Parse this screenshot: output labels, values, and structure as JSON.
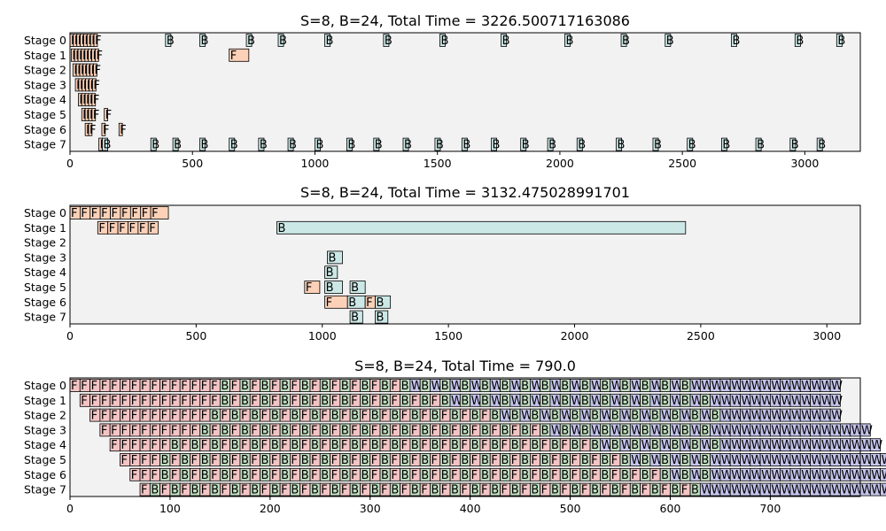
{
  "chart_data": [
    {
      "type": "gantt",
      "title": "S=8, B=24, Total Time = 3226.500717163086",
      "stages": [
        "Stage 0",
        "Stage 1",
        "Stage 2",
        "Stage 3",
        "Stage 4",
        "Stage 5",
        "Stage 6",
        "Stage 7"
      ],
      "xlim": [
        0,
        3226.5
      ],
      "xticks": [
        0,
        500,
        1000,
        1500,
        2000,
        2500,
        3000
      ],
      "xtick_labels": [
        "0",
        "500",
        "1000",
        "1500",
        "2000",
        "2500",
        "3000"
      ],
      "colors": {
        "F": "#fcd1b8",
        "B": "#cce8e6",
        "W": "#cce8e6",
        "bg": "#f2f2f2"
      },
      "ops": [
        {
          "stage": 0,
          "kind": "F",
          "start": 0,
          "dur": 14
        },
        {
          "stage": 0,
          "kind": "F",
          "start": 14,
          "dur": 14
        },
        {
          "stage": 0,
          "kind": "F",
          "start": 28,
          "dur": 14
        },
        {
          "stage": 0,
          "kind": "F",
          "start": 42,
          "dur": 14
        },
        {
          "stage": 0,
          "kind": "F",
          "start": 56,
          "dur": 14
        },
        {
          "stage": 0,
          "kind": "F",
          "start": 70,
          "dur": 14
        },
        {
          "stage": 0,
          "kind": "F",
          "start": 84,
          "dur": 14
        },
        {
          "stage": 0,
          "kind": "F",
          "start": 98,
          "dur": 14
        },
        {
          "stage": 1,
          "kind": "F",
          "start": 5,
          "dur": 14
        },
        {
          "stage": 1,
          "kind": "F",
          "start": 19,
          "dur": 14
        },
        {
          "stage": 1,
          "kind": "F",
          "start": 33,
          "dur": 14
        },
        {
          "stage": 1,
          "kind": "F",
          "start": 47,
          "dur": 14
        },
        {
          "stage": 1,
          "kind": "F",
          "start": 61,
          "dur": 14
        },
        {
          "stage": 1,
          "kind": "F",
          "start": 75,
          "dur": 14
        },
        {
          "stage": 1,
          "kind": "F",
          "start": 89,
          "dur": 14
        },
        {
          "stage": 1,
          "kind": "F",
          "start": 103,
          "dur": 14
        },
        {
          "stage": 2,
          "kind": "F",
          "start": 12,
          "dur": 14
        },
        {
          "stage": 2,
          "kind": "F",
          "start": 26,
          "dur": 14
        },
        {
          "stage": 2,
          "kind": "F",
          "start": 40,
          "dur": 14
        },
        {
          "stage": 2,
          "kind": "F",
          "start": 54,
          "dur": 14
        },
        {
          "stage": 2,
          "kind": "F",
          "start": 68,
          "dur": 14
        },
        {
          "stage": 2,
          "kind": "F",
          "start": 82,
          "dur": 14
        },
        {
          "stage": 2,
          "kind": "F",
          "start": 96,
          "dur": 14
        },
        {
          "stage": 3,
          "kind": "F",
          "start": 22,
          "dur": 14
        },
        {
          "stage": 3,
          "kind": "F",
          "start": 36,
          "dur": 14
        },
        {
          "stage": 3,
          "kind": "F",
          "start": 50,
          "dur": 14
        },
        {
          "stage": 3,
          "kind": "F",
          "start": 64,
          "dur": 14
        },
        {
          "stage": 3,
          "kind": "F",
          "start": 78,
          "dur": 14
        },
        {
          "stage": 3,
          "kind": "F",
          "start": 92,
          "dur": 14
        },
        {
          "stage": 4,
          "kind": "F",
          "start": 34,
          "dur": 14
        },
        {
          "stage": 4,
          "kind": "F",
          "start": 48,
          "dur": 14
        },
        {
          "stage": 4,
          "kind": "F",
          "start": 62,
          "dur": 14
        },
        {
          "stage": 4,
          "kind": "F",
          "start": 76,
          "dur": 14
        },
        {
          "stage": 4,
          "kind": "F",
          "start": 90,
          "dur": 14
        },
        {
          "stage": 5,
          "kind": "F",
          "start": 48,
          "dur": 14
        },
        {
          "stage": 5,
          "kind": "F",
          "start": 62,
          "dur": 14
        },
        {
          "stage": 5,
          "kind": "F",
          "start": 76,
          "dur": 14
        },
        {
          "stage": 5,
          "kind": "F",
          "start": 90,
          "dur": 14
        },
        {
          "stage": 5,
          "kind": "F",
          "start": 140,
          "dur": 14
        },
        {
          "stage": 6,
          "kind": "F",
          "start": 62,
          "dur": 14
        },
        {
          "stage": 6,
          "kind": "F",
          "start": 76,
          "dur": 14
        },
        {
          "stage": 6,
          "kind": "F",
          "start": 130,
          "dur": 14
        },
        {
          "stage": 6,
          "kind": "F",
          "start": 200,
          "dur": 14
        },
        {
          "stage": 7,
          "kind": "F",
          "start": 118,
          "dur": 14
        },
        {
          "stage": 7,
          "kind": "B",
          "start": 132,
          "dur": 22
        },
        {
          "stage": 7,
          "kind": "B",
          "start": 330,
          "dur": 22
        },
        {
          "stage": 7,
          "kind": "B",
          "start": 420,
          "dur": 22
        },
        {
          "stage": 7,
          "kind": "B",
          "start": 530,
          "dur": 22
        },
        {
          "stage": 7,
          "kind": "B",
          "start": 650,
          "dur": 22
        },
        {
          "stage": 7,
          "kind": "B",
          "start": 770,
          "dur": 22
        },
        {
          "stage": 7,
          "kind": "B",
          "start": 890,
          "dur": 22
        },
        {
          "stage": 7,
          "kind": "B",
          "start": 1000,
          "dur": 22
        },
        {
          "stage": 7,
          "kind": "B",
          "start": 1130,
          "dur": 22
        },
        {
          "stage": 7,
          "kind": "B",
          "start": 1240,
          "dur": 22
        },
        {
          "stage": 7,
          "kind": "B",
          "start": 1360,
          "dur": 22
        },
        {
          "stage": 7,
          "kind": "B",
          "start": 1490,
          "dur": 22
        },
        {
          "stage": 7,
          "kind": "B",
          "start": 1600,
          "dur": 22
        },
        {
          "stage": 7,
          "kind": "B",
          "start": 1720,
          "dur": 22
        },
        {
          "stage": 7,
          "kind": "B",
          "start": 1840,
          "dur": 22
        },
        {
          "stage": 7,
          "kind": "B",
          "start": 1950,
          "dur": 22
        },
        {
          "stage": 7,
          "kind": "B",
          "start": 2070,
          "dur": 22
        },
        {
          "stage": 7,
          "kind": "B",
          "start": 2230,
          "dur": 22
        },
        {
          "stage": 7,
          "kind": "B",
          "start": 2380,
          "dur": 22
        },
        {
          "stage": 7,
          "kind": "B",
          "start": 2520,
          "dur": 22
        },
        {
          "stage": 7,
          "kind": "B",
          "start": 2660,
          "dur": 22
        },
        {
          "stage": 7,
          "kind": "B",
          "start": 2800,
          "dur": 22
        },
        {
          "stage": 7,
          "kind": "B",
          "start": 2940,
          "dur": 22
        },
        {
          "stage": 7,
          "kind": "B",
          "start": 3050,
          "dur": 22
        },
        {
          "stage": 0,
          "kind": "B",
          "start": 390,
          "dur": 22
        },
        {
          "stage": 0,
          "kind": "B",
          "start": 530,
          "dur": 22
        },
        {
          "stage": 0,
          "kind": "B",
          "start": 720,
          "dur": 22
        },
        {
          "stage": 0,
          "kind": "B",
          "start": 850,
          "dur": 22
        },
        {
          "stage": 0,
          "kind": "B",
          "start": 1040,
          "dur": 22
        },
        {
          "stage": 0,
          "kind": "B",
          "start": 1280,
          "dur": 22
        },
        {
          "stage": 0,
          "kind": "B",
          "start": 1510,
          "dur": 22
        },
        {
          "stage": 0,
          "kind": "B",
          "start": 1760,
          "dur": 22
        },
        {
          "stage": 0,
          "kind": "B",
          "start": 2020,
          "dur": 22
        },
        {
          "stage": 0,
          "kind": "B",
          "start": 2250,
          "dur": 22
        },
        {
          "stage": 0,
          "kind": "B",
          "start": 2430,
          "dur": 22
        },
        {
          "stage": 0,
          "kind": "B",
          "start": 2700,
          "dur": 22
        },
        {
          "stage": 0,
          "kind": "B",
          "start": 2960,
          "dur": 22
        },
        {
          "stage": 0,
          "kind": "B",
          "start": 3130,
          "dur": 22
        },
        {
          "stage": 1,
          "kind": "F",
          "start": 650,
          "dur": 80
        }
      ]
    },
    {
      "type": "gantt",
      "title": "S=8, B=24, Total Time = 3132.475028991701",
      "stages": [
        "Stage 0",
        "Stage 1",
        "Stage 2",
        "Stage 3",
        "Stage 4",
        "Stage 5",
        "Stage 6",
        "Stage 7"
      ],
      "xlim": [
        0,
        3132.5
      ],
      "xticks": [
        0,
        500,
        1000,
        1500,
        2000,
        2500,
        3000
      ],
      "xtick_labels": [
        "0",
        "500",
        "1000",
        "1500",
        "2000",
        "2500",
        "3000"
      ],
      "colors": {
        "F": "#fcd1b8",
        "B": "#cce8e6",
        "W": "#cce8e6",
        "bg": "#f2f2f2"
      },
      "ops": [
        {
          "stage": 0,
          "kind": "F",
          "start": 0,
          "dur": 40
        },
        {
          "stage": 0,
          "kind": "F",
          "start": 40,
          "dur": 40
        },
        {
          "stage": 0,
          "kind": "F",
          "start": 80,
          "dur": 40
        },
        {
          "stage": 0,
          "kind": "F",
          "start": 120,
          "dur": 40
        },
        {
          "stage": 0,
          "kind": "F",
          "start": 160,
          "dur": 40
        },
        {
          "stage": 0,
          "kind": "F",
          "start": 200,
          "dur": 40
        },
        {
          "stage": 0,
          "kind": "F",
          "start": 240,
          "dur": 40
        },
        {
          "stage": 0,
          "kind": "F",
          "start": 280,
          "dur": 40
        },
        {
          "stage": 0,
          "kind": "F",
          "start": 320,
          "dur": 70
        },
        {
          "stage": 1,
          "kind": "F",
          "start": 110,
          "dur": 40
        },
        {
          "stage": 1,
          "kind": "F",
          "start": 150,
          "dur": 40
        },
        {
          "stage": 1,
          "kind": "F",
          "start": 190,
          "dur": 40
        },
        {
          "stage": 1,
          "kind": "F",
          "start": 230,
          "dur": 40
        },
        {
          "stage": 1,
          "kind": "F",
          "start": 270,
          "dur": 40
        },
        {
          "stage": 1,
          "kind": "F",
          "start": 310,
          "dur": 40
        },
        {
          "stage": 1,
          "kind": "B",
          "start": 820,
          "dur": 1620
        },
        {
          "stage": 3,
          "kind": "B",
          "start": 1020,
          "dur": 60
        },
        {
          "stage": 4,
          "kind": "B",
          "start": 1010,
          "dur": 50
        },
        {
          "stage": 5,
          "kind": "F",
          "start": 930,
          "dur": 60
        },
        {
          "stage": 5,
          "kind": "B",
          "start": 1010,
          "dur": 70
        },
        {
          "stage": 5,
          "kind": "B",
          "start": 1110,
          "dur": 60
        },
        {
          "stage": 6,
          "kind": "F",
          "start": 1010,
          "dur": 90
        },
        {
          "stage": 6,
          "kind": "B",
          "start": 1100,
          "dur": 70
        },
        {
          "stage": 6,
          "kind": "F",
          "start": 1170,
          "dur": 40
        },
        {
          "stage": 6,
          "kind": "B",
          "start": 1210,
          "dur": 60
        },
        {
          "stage": 7,
          "kind": "B",
          "start": 1110,
          "dur": 50
        },
        {
          "stage": 7,
          "kind": "B",
          "start": 1210,
          "dur": 50
        }
      ]
    },
    {
      "type": "gantt",
      "title": "S=8, B=24, Total Time = 790.0",
      "stages": [
        "Stage 0",
        "Stage 1",
        "Stage 2",
        "Stage 3",
        "Stage 4",
        "Stage 5",
        "Stage 6",
        "Stage 7"
      ],
      "xlim": [
        0,
        790
      ],
      "xticks": [
        0,
        100,
        200,
        300,
        400,
        500,
        600,
        700
      ],
      "xtick_labels": [
        "0",
        "100",
        "200",
        "300",
        "400",
        "500",
        "600",
        "700"
      ],
      "colors": {
        "F": "#f4c4c4",
        "B": "#c0ddc0",
        "W": "#c4c4ec",
        "bg": "#f2f2f2"
      },
      "slot": 10,
      "stage_sequences": [
        "FFFFFFFFFFFFFFFBFBFBFBFBFBFBFBFBFBWBWBWBWBWBWBWBWBWBWBWBWBWBWBWWWWWWWWWWWWWWW",
        "FFFFFFFFFFFFFFBFBFBFBFBFBFBFBFBFBFBFBWBWBWBWBWBWBWBWBWBWBWBWBWBWWWWWWWWWWWWW",
        "FFFFFFFFFFFFBFBFBFBFBFBFBFBFBFBFBFBFBFBFBWBWBWBWBWBWBWBWBWBWBWBWWWWWWWWWWWW",
        "FFFFFFFFFFBFBFBFBFBFBFBFBFBFBFBFBFBFBFBFBFBFBWBWBWBWBWBWBWBWBWWWWWWWWWWWWWWWW",
        "FFFFFFBFBFBFBFBFBFBFBFBFBFBFBFBFBFBFBFBFBFBFBFBFBWBWBWBWBWBWBWWWWWWWWWWWWWWWW",
        "FFFFBFBFBFBFBFBFBFBFBFBFBFBFBFBFBFBFBFBFBFBFBFBFBFBWBWBWBWBWWWWWWWWWWWWWWWWWW",
        "FFFBFBFBFBFBFBFBFBFBFBFBFBFBFBFBFBFBFBFBFBFBFBFBFBFBFBWBWBWWWWWWWWWWWWWWWWWWWW",
        "FBFBFBFBFBFBFBFBFBFBFBFBFBFBFBFBFBFBFBFBFBFBFBFBFBFBFBFBWWWWWWWWWWWWWWWWWWWWWW"
      ],
      "stage_offsets": [
        0,
        10,
        20,
        30,
        40,
        50,
        60,
        70
      ]
    }
  ]
}
